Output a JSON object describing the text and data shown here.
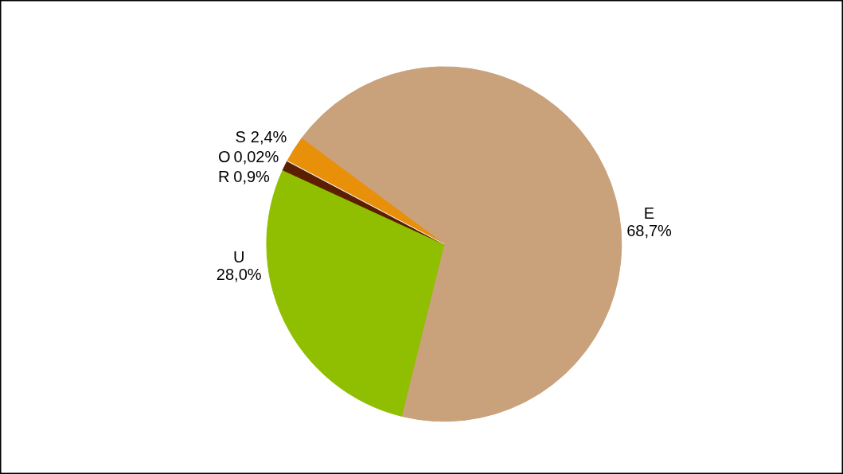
{
  "chart_data": {
    "type": "pie",
    "categories": [
      "E",
      "U",
      "R",
      "O",
      "S"
    ],
    "values": [
      68.7,
      28.0,
      0.9,
      0.02,
      2.4
    ],
    "value_labels": [
      "68,7%",
      "28,0%",
      "0,9%",
      "0,02%",
      "2,4%"
    ],
    "colors": [
      "#c9a27c",
      "#8fbf00",
      "#5c1e00",
      "#f0e6d8",
      "#e8900a"
    ]
  }
}
